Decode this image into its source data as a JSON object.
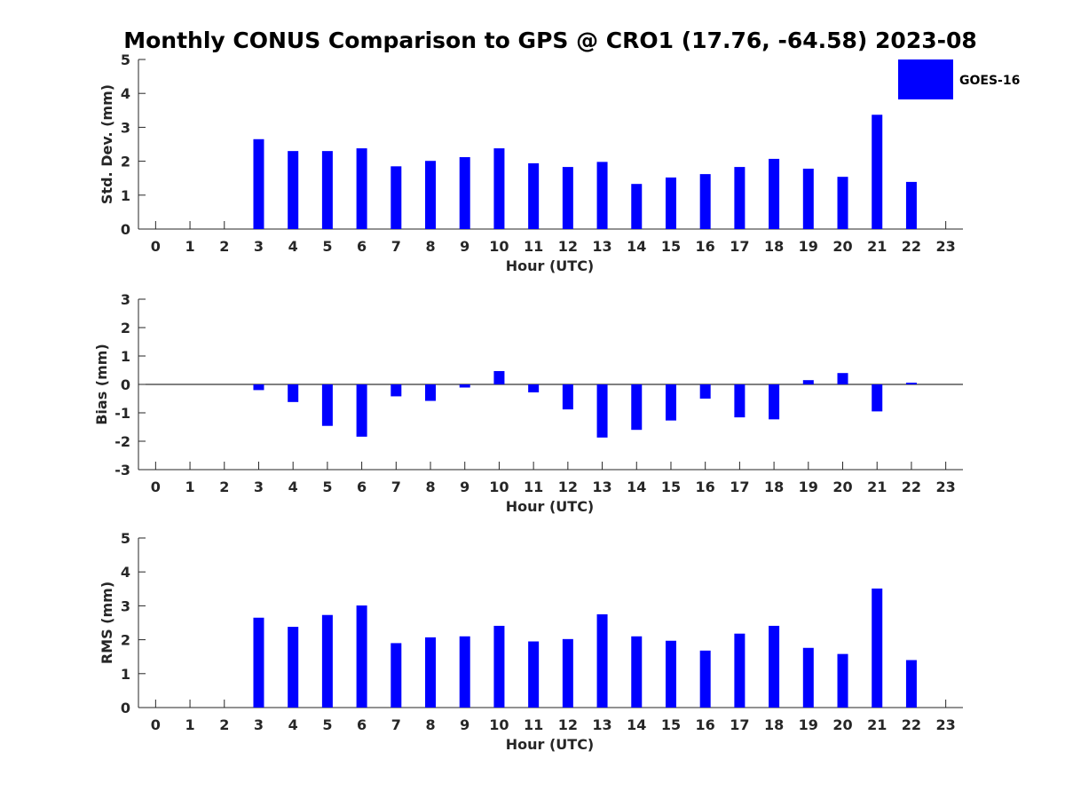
{
  "figure": {
    "title": "Monthly CONUS Comparison to GPS @ CRO1 (17.76, -64.58) 2023-08"
  },
  "legend": {
    "label": "GOES-16",
    "color": "#0000ff",
    "placement": "top-right"
  },
  "chart_data": [
    {
      "type": "bar",
      "ylabel": "Std. Dev. (mm)",
      "xlabel": "Hour (UTC)",
      "ylim": [
        0,
        5
      ],
      "yticks": [
        0,
        1,
        2,
        3,
        4,
        5
      ],
      "yticklabels": [
        "0",
        "1",
        "2",
        "3",
        "4",
        "5"
      ],
      "categories": [
        "0",
        "1",
        "2",
        "3",
        "4",
        "5",
        "6",
        "7",
        "8",
        "9",
        "10",
        "11",
        "12",
        "13",
        "14",
        "15",
        "16",
        "17",
        "18",
        "19",
        "20",
        "21",
        "22",
        "23"
      ],
      "series": [
        {
          "name": "GOES-16",
          "color": "#0000ff",
          "values": [
            null,
            null,
            null,
            2.65,
            2.3,
            2.3,
            2.38,
            1.85,
            2.01,
            2.12,
            2.38,
            1.94,
            1.83,
            1.98,
            1.33,
            1.52,
            1.62,
            1.83,
            2.07,
            1.78,
            1.54,
            3.37,
            1.39,
            null
          ]
        }
      ],
      "grid": false
    },
    {
      "type": "bar",
      "ylabel": "Bias (mm)",
      "xlabel": "Hour (UTC)",
      "ylim": [
        -3,
        3
      ],
      "yticks": [
        -3,
        -2,
        -1,
        0,
        1,
        2,
        3
      ],
      "yticklabels": [
        "-3",
        "-2",
        "-1",
        "0",
        "1",
        "2",
        "3"
      ],
      "zero_line": true,
      "categories": [
        "0",
        "1",
        "2",
        "3",
        "4",
        "5",
        "6",
        "7",
        "8",
        "9",
        "10",
        "11",
        "12",
        "13",
        "14",
        "15",
        "16",
        "17",
        "18",
        "19",
        "20",
        "21",
        "22",
        "23"
      ],
      "series": [
        {
          "name": "GOES-16",
          "color": "#0000ff",
          "values": [
            null,
            null,
            null,
            -0.2,
            -0.62,
            -1.46,
            -1.84,
            -0.42,
            -0.58,
            -0.11,
            0.47,
            -0.28,
            -0.88,
            -1.87,
            -1.6,
            -1.27,
            -0.5,
            -1.16,
            -1.23,
            0.15,
            0.4,
            -0.95,
            0.06,
            null
          ]
        }
      ],
      "grid": false
    },
    {
      "type": "bar",
      "ylabel": "RMS (mm)",
      "xlabel": "Hour (UTC)",
      "ylim": [
        0,
        5
      ],
      "yticks": [
        0,
        1,
        2,
        3,
        4,
        5
      ],
      "yticklabels": [
        "0",
        "1",
        "2",
        "3",
        "4",
        "5"
      ],
      "categories": [
        "0",
        "1",
        "2",
        "3",
        "4",
        "5",
        "6",
        "7",
        "8",
        "9",
        "10",
        "11",
        "12",
        "13",
        "14",
        "15",
        "16",
        "17",
        "18",
        "19",
        "20",
        "21",
        "22",
        "23"
      ],
      "series": [
        {
          "name": "GOES-16",
          "color": "#0000ff",
          "values": [
            null,
            null,
            null,
            2.65,
            2.38,
            2.73,
            3.01,
            1.9,
            2.07,
            2.1,
            2.41,
            1.95,
            2.02,
            2.75,
            2.1,
            1.97,
            1.68,
            2.18,
            2.41,
            1.76,
            1.58,
            3.51,
            1.4,
            null
          ]
        }
      ],
      "grid": false
    }
  ]
}
